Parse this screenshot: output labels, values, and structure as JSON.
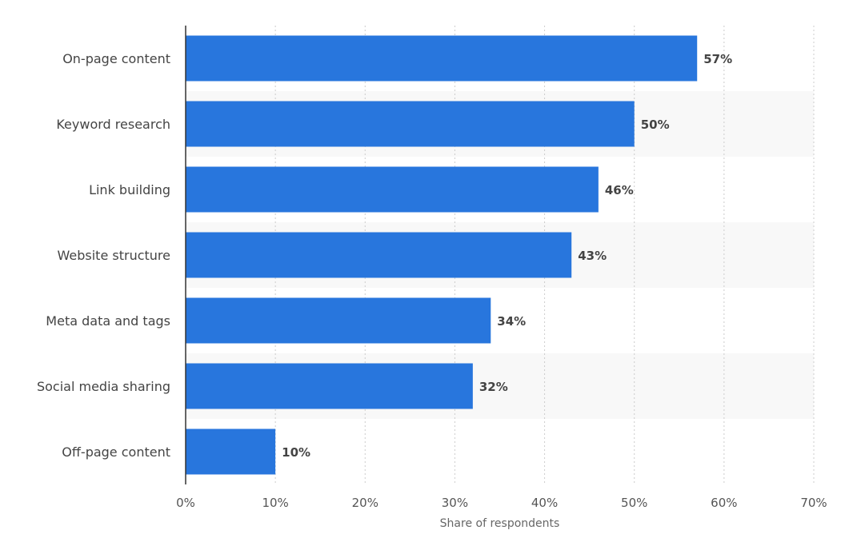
{
  "chart_data": {
    "type": "bar",
    "orientation": "horizontal",
    "categories": [
      "On-page content",
      "Keyword research",
      "Link building",
      "Website structure",
      "Meta data and tags",
      "Social media sharing",
      "Off-page content"
    ],
    "values": [
      57,
      50,
      46,
      43,
      34,
      32,
      10
    ],
    "value_labels": [
      "57%",
      "50%",
      "46%",
      "43%",
      "34%",
      "32%",
      "10%"
    ],
    "xlabel": "Share of respondents",
    "ylabel": "",
    "xlim": [
      0,
      70
    ],
    "x_ticks": [
      "0%",
      "10%",
      "20%",
      "30%",
      "40%",
      "50%",
      "60%",
      "70%"
    ],
    "grid": true,
    "colors": {
      "bar": "#2876dd",
      "band": "#f8f8f8",
      "grid": "#cccccc",
      "axis": "#333333"
    }
  }
}
